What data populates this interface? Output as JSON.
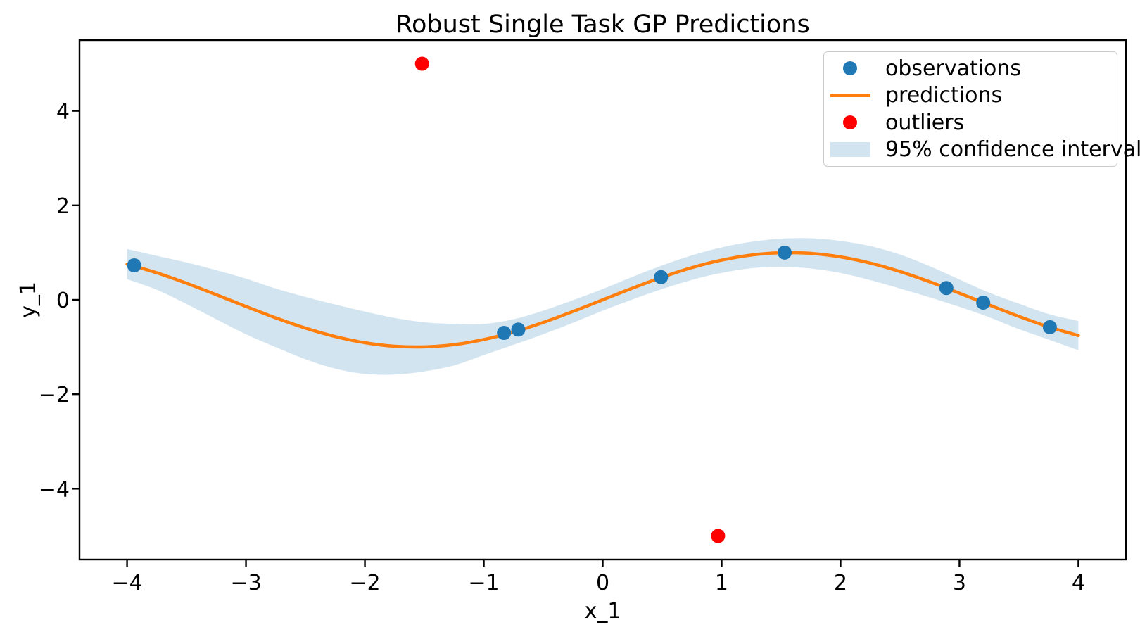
{
  "figure": {
    "title": "Robust Single Task GP Predictions",
    "background_color": "#ffffff",
    "text_color": "#000000"
  },
  "chart_data": {
    "type": "line",
    "title": "Robust Single Task GP Predictions",
    "xlabel": "x_1",
    "ylabel": "y_1",
    "xlim": [
      -4.4,
      4.4
    ],
    "ylim": [
      -5.5,
      5.5
    ],
    "x_ticks": [
      -4,
      -3,
      -2,
      -1,
      0,
      1,
      2,
      3,
      4
    ],
    "x_tick_labels": [
      "−4",
      "−3",
      "−2",
      "−1",
      "0",
      "1",
      "2",
      "3",
      "4"
    ],
    "y_ticks": [
      -4,
      -2,
      0,
      2,
      4
    ],
    "y_tick_labels": [
      "−4",
      "−2",
      "0",
      "2",
      "4"
    ],
    "grid": false,
    "legend_position": "upper right",
    "grid_x": [
      -4,
      -3.75,
      -3.5,
      -3.25,
      -3,
      -2.75,
      -2.5,
      -2.25,
      -2,
      -1.75,
      -1.5,
      -1.25,
      -1,
      -0.75,
      -0.5,
      -0.25,
      0,
      0.25,
      0.5,
      0.75,
      1,
      1.25,
      1.5,
      1.75,
      2,
      2.25,
      2.5,
      2.75,
      3,
      3.25,
      3.5,
      3.75,
      4
    ],
    "series": {
      "observations": {
        "type": "scatter",
        "color": "#1f77b4",
        "points": [
          [
            -3.94,
            0.73
          ],
          [
            -0.83,
            -0.7
          ],
          [
            -0.71,
            -0.63
          ],
          [
            0.49,
            0.48
          ],
          [
            1.53,
            1.0
          ],
          [
            2.89,
            0.25
          ],
          [
            3.2,
            -0.06
          ],
          [
            3.76,
            -0.58
          ]
        ]
      },
      "predictions": {
        "type": "line",
        "color": "#ff7f0e",
        "y": [
          0.757,
          0.572,
          0.351,
          0.108,
          -0.141,
          -0.382,
          -0.599,
          -0.778,
          -0.909,
          -0.984,
          -0.997,
          -0.949,
          -0.841,
          -0.682,
          -0.479,
          -0.247,
          0,
          0.247,
          0.479,
          0.682,
          0.841,
          0.949,
          0.997,
          0.984,
          0.909,
          0.778,
          0.599,
          0.382,
          0.141,
          -0.108,
          -0.351,
          -0.572,
          -0.757
        ]
      },
      "outliers": {
        "type": "scatter",
        "color": "#ff0000",
        "points": [
          [
            -1.52,
            5.0
          ],
          [
            0.97,
            -5.0
          ]
        ]
      },
      "confidence_interval": {
        "type": "band",
        "label": "95% confidence interval",
        "color": "rgba(31,119,180,0.2)",
        "upper": [
          1.077,
          0.932,
          0.791,
          0.628,
          0.449,
          0.238,
          0.061,
          -0.098,
          -0.249,
          -0.384,
          -0.477,
          -0.509,
          -0.511,
          -0.412,
          -0.229,
          -0.007,
          0.23,
          0.487,
          0.729,
          0.942,
          1.111,
          1.229,
          1.297,
          1.304,
          1.249,
          1.138,
          0.959,
          0.712,
          0.431,
          0.152,
          -0.081,
          -0.302,
          -0.447
        ],
        "lower": [
          0.437,
          0.212,
          -0.089,
          -0.412,
          -0.731,
          -1.002,
          -1.259,
          -1.458,
          -1.569,
          -1.584,
          -1.517,
          -1.389,
          -1.171,
          -0.952,
          -0.729,
          -0.487,
          -0.23,
          0.007,
          0.229,
          0.422,
          0.571,
          0.669,
          0.697,
          0.664,
          0.569,
          0.418,
          0.239,
          0.052,
          -0.149,
          -0.368,
          -0.621,
          -0.842,
          -1.067
        ]
      }
    }
  },
  "legend": {
    "entries": [
      {
        "label": "observations",
        "marker": "dot",
        "color": "#1f77b4"
      },
      {
        "label": "predictions",
        "marker": "line",
        "color": "#ff7f0e"
      },
      {
        "label": "outliers",
        "marker": "dot",
        "color": "#ff0000"
      },
      {
        "label": "95% confidence interval",
        "marker": "patch",
        "color": "rgba(31,119,180,0.2)"
      }
    ]
  }
}
